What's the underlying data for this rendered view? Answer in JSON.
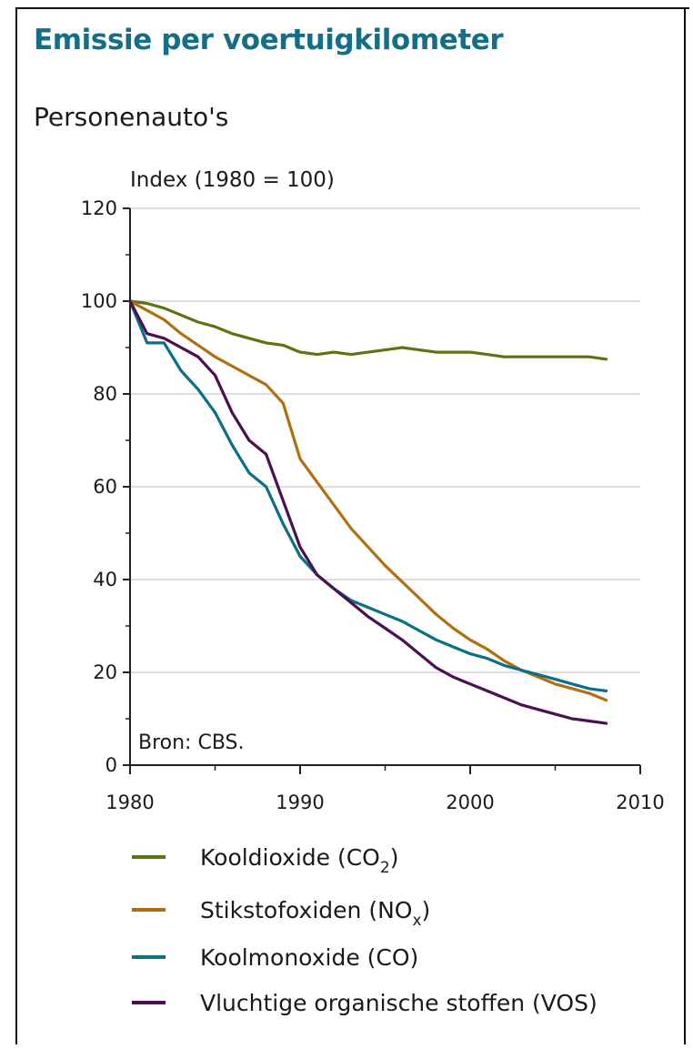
{
  "title": "Emissie per voertuigkilometer",
  "subtitle": "Personenauto's",
  "chart_data": {
    "type": "line",
    "ylabel": "Index (1980 = 100)",
    "source": "Bron: CBS.",
    "xlim": [
      1980,
      2010
    ],
    "ylim": [
      0,
      120
    ],
    "x_ticks": [
      1980,
      1990,
      2000,
      2010
    ],
    "y_ticks": [
      0,
      20,
      40,
      60,
      80,
      100,
      120
    ],
    "grid": true,
    "legend_position": "bottom",
    "series": [
      {
        "name": "Kooldioxide (CO2)",
        "name_main": "Kooldioxide (CO",
        "name_sub": "2",
        "name_end": ")",
        "color": "#5b7510",
        "points": [
          [
            1980,
            100
          ],
          [
            1981,
            99.5
          ],
          [
            1982,
            98.5
          ],
          [
            1983,
            97
          ],
          [
            1984,
            95.5
          ],
          [
            1985,
            94.5
          ],
          [
            1986,
            93
          ],
          [
            1987,
            92
          ],
          [
            1988,
            91
          ],
          [
            1989,
            90.5
          ],
          [
            1990,
            89
          ],
          [
            1991,
            88.5
          ],
          [
            1992,
            89
          ],
          [
            1993,
            88.5
          ],
          [
            1994,
            89
          ],
          [
            1995,
            89.5
          ],
          [
            1996,
            90
          ],
          [
            1997,
            89.5
          ],
          [
            1998,
            89
          ],
          [
            1999,
            89
          ],
          [
            2000,
            89
          ],
          [
            2001,
            88.5
          ],
          [
            2002,
            88
          ],
          [
            2003,
            88
          ],
          [
            2004,
            88
          ],
          [
            2005,
            88
          ],
          [
            2006,
            88
          ],
          [
            2007,
            88
          ],
          [
            2008,
            87.5
          ]
        ]
      },
      {
        "name": "Stikstofoxiden (NOx)",
        "name_main": "Stikstofoxiden (NO",
        "name_sub": "x",
        "name_end": ")",
        "color": "#b07010",
        "points": [
          [
            1980,
            100
          ],
          [
            1981,
            98
          ],
          [
            1982,
            96
          ],
          [
            1983,
            93
          ],
          [
            1984,
            90.5
          ],
          [
            1985,
            88
          ],
          [
            1986,
            86
          ],
          [
            1987,
            84
          ],
          [
            1988,
            82
          ],
          [
            1989,
            78
          ],
          [
            1990,
            66
          ],
          [
            1991,
            61
          ],
          [
            1992,
            56
          ],
          [
            1993,
            51
          ],
          [
            1994,
            47
          ],
          [
            1995,
            43
          ],
          [
            1996,
            39.5
          ],
          [
            1997,
            36
          ],
          [
            1998,
            32.5
          ],
          [
            1999,
            29.5
          ],
          [
            2000,
            27
          ],
          [
            2001,
            25
          ],
          [
            2002,
            22.5
          ],
          [
            2003,
            20.5
          ],
          [
            2004,
            19
          ],
          [
            2005,
            17.5
          ],
          [
            2006,
            16.5
          ],
          [
            2007,
            15.5
          ],
          [
            2008,
            14
          ]
        ]
      },
      {
        "name": "Koolmonoxide (CO)",
        "name_main": "Koolmonoxide (CO)",
        "name_sub": "",
        "name_end": "",
        "color": "#0b6f86",
        "points": [
          [
            1980,
            100
          ],
          [
            1981,
            91
          ],
          [
            1982,
            91
          ],
          [
            1983,
            85
          ],
          [
            1984,
            81
          ],
          [
            1985,
            76
          ],
          [
            1986,
            69
          ],
          [
            1987,
            63
          ],
          [
            1988,
            60
          ],
          [
            1989,
            52
          ],
          [
            1990,
            45
          ],
          [
            1991,
            41
          ],
          [
            1992,
            38
          ],
          [
            1993,
            35.5
          ],
          [
            1994,
            34
          ],
          [
            1995,
            32.5
          ],
          [
            1996,
            31
          ],
          [
            1997,
            29
          ],
          [
            1998,
            27
          ],
          [
            1999,
            25.5
          ],
          [
            2000,
            24
          ],
          [
            2001,
            23
          ],
          [
            2002,
            21.5
          ],
          [
            2003,
            20.5
          ],
          [
            2004,
            19.5
          ],
          [
            2005,
            18.5
          ],
          [
            2006,
            17.5
          ],
          [
            2007,
            16.5
          ],
          [
            2008,
            16
          ]
        ]
      },
      {
        "name": "Vluchtige organische stoffen (VOS)",
        "name_main": "Vluchtige organische stoffen (VOS)",
        "name_sub": "",
        "name_end": "",
        "color": "#4a1050",
        "points": [
          [
            1980,
            100
          ],
          [
            1981,
            93
          ],
          [
            1982,
            92
          ],
          [
            1983,
            90
          ],
          [
            1984,
            88
          ],
          [
            1985,
            84
          ],
          [
            1986,
            76
          ],
          [
            1987,
            70
          ],
          [
            1988,
            67
          ],
          [
            1989,
            57
          ],
          [
            1990,
            47
          ],
          [
            1991,
            41
          ],
          [
            1992,
            38
          ],
          [
            1993,
            35
          ],
          [
            1994,
            32
          ],
          [
            1995,
            29.5
          ],
          [
            1996,
            27
          ],
          [
            1997,
            24
          ],
          [
            1998,
            21
          ],
          [
            1999,
            19
          ],
          [
            2000,
            17.5
          ],
          [
            2001,
            16
          ],
          [
            2002,
            14.5
          ],
          [
            2003,
            13
          ],
          [
            2004,
            12
          ],
          [
            2005,
            11
          ],
          [
            2006,
            10
          ],
          [
            2007,
            9.5
          ],
          [
            2008,
            9
          ]
        ]
      }
    ]
  }
}
